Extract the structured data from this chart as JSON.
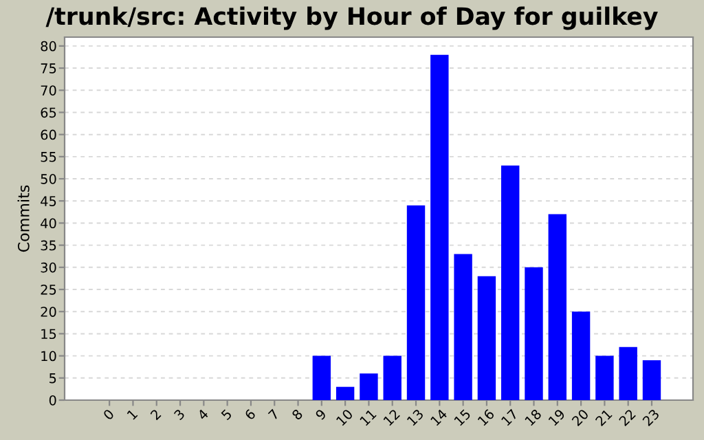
{
  "chart_data": {
    "type": "bar",
    "title": "/trunk/src: Activity by Hour of Day for guilkey",
    "ylabel": "Commits",
    "categories": [
      "0",
      "1",
      "2",
      "3",
      "4",
      "5",
      "6",
      "7",
      "8",
      "9",
      "10",
      "11",
      "12",
      "13",
      "14",
      "15",
      "16",
      "17",
      "18",
      "19",
      "20",
      "21",
      "22",
      "23"
    ],
    "values": [
      0,
      0,
      0,
      0,
      0,
      0,
      0,
      0,
      0,
      10,
      3,
      6,
      10,
      44,
      78,
      33,
      28,
      53,
      30,
      42,
      20,
      10,
      12,
      9
    ],
    "color": "#0000ff",
    "ylim": [
      0,
      82
    ],
    "yticks": [
      0,
      5,
      10,
      15,
      20,
      25,
      30,
      35,
      40,
      45,
      50,
      55,
      60,
      65,
      70,
      75,
      80
    ],
    "grid": "y"
  }
}
